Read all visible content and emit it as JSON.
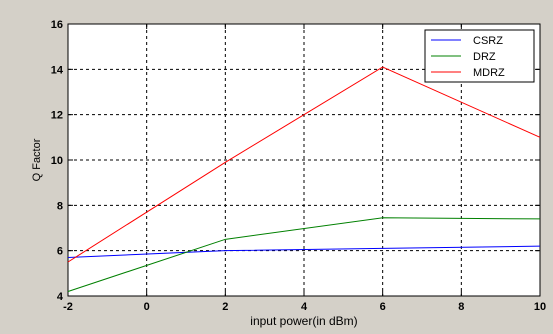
{
  "chart_data": {
    "type": "line",
    "title": "",
    "xlabel": "input power(in dBm)",
    "ylabel": "Q Factor",
    "xlim": [
      -2,
      10
    ],
    "ylim": [
      4,
      16
    ],
    "xticks": [
      -2,
      0,
      2,
      4,
      6,
      8,
      10
    ],
    "yticks": [
      4,
      6,
      8,
      10,
      12,
      14,
      16
    ],
    "grid": true,
    "legend_position": "top-right",
    "x": [
      -2,
      2,
      6,
      10
    ],
    "series": [
      {
        "name": "CSRZ",
        "color": "#0000ff",
        "values": [
          5.7,
          6.0,
          6.1,
          6.2
        ]
      },
      {
        "name": "DRZ",
        "color": "#008000",
        "values": [
          4.2,
          6.5,
          7.45,
          7.4
        ]
      },
      {
        "name": "MDRZ",
        "color": "#ff0000",
        "values": [
          5.5,
          9.9,
          14.1,
          11.0
        ]
      }
    ]
  }
}
